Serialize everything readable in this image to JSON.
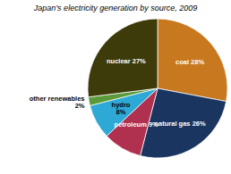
{
  "chart_data": {
    "type": "pie",
    "title": "Japan’s electricity generation by source, 2009",
    "categories": [
      "coal 28%",
      "natural gas 26%",
      "petroleum 9%",
      "hydro\n8%",
      "other renewables\n2%",
      "nuclear 27%"
    ],
    "values": [
      28,
      26,
      9,
      8,
      2,
      27
    ],
    "colors": [
      "#c8781e",
      "#1a3560",
      "#b03050",
      "#2ea8d5",
      "#5a9a3a",
      "#3d3b0a"
    ]
  }
}
